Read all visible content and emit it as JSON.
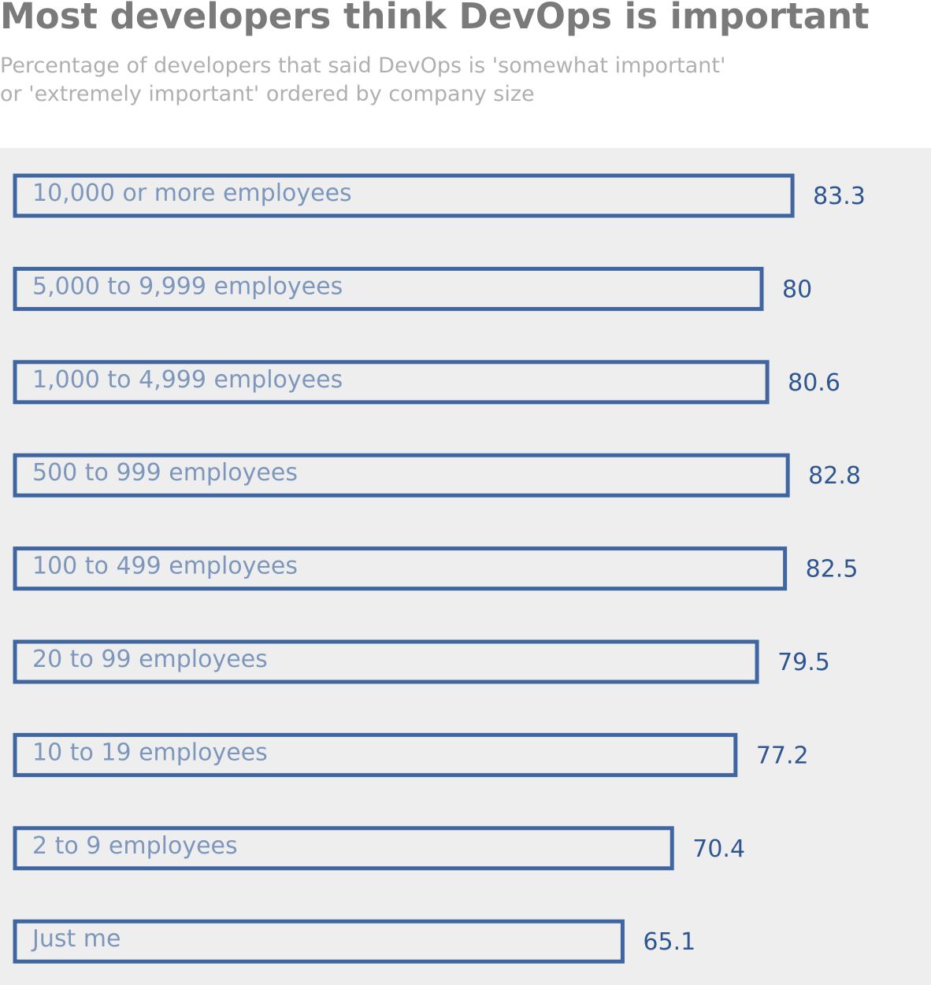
{
  "header": {
    "title": "Most developers think DevOps is important",
    "subtitle_lines": [
      "Percentage of developers that said DevOps is 'somewhat important'",
      "or 'extremely important' ordered by company size"
    ]
  },
  "colors": {
    "bar_stroke": "#3f66a1",
    "bar_label": "#7d97bc",
    "value_label": "#2f5691",
    "panel_background": "#eeeeee"
  },
  "chart_data": {
    "type": "bar",
    "orientation": "horizontal",
    "title": "Most developers think DevOps is important",
    "subtitle": "Percentage of developers that said DevOps is 'somewhat important' or 'extremely important' ordered by company size",
    "categories": [
      "10,000 or more employees",
      "5,000 to 9,999 employees",
      "1,000 to 4,999 employees",
      "500 to 999 employees",
      "100 to 499 employees",
      "20 to 99 employees",
      "10 to 19 employees",
      "2 to 9 employees",
      "Just me"
    ],
    "values": [
      83.3,
      80,
      80.6,
      82.8,
      82.5,
      79.5,
      77.2,
      70.4,
      65.1
    ],
    "value_labels": [
      "83.3",
      "80",
      "80.6",
      "82.8",
      "82.5",
      "79.5",
      "77.2",
      "70.4",
      "65.1"
    ],
    "xlabel": "",
    "ylabel": "",
    "xlim": [
      0,
      100
    ],
    "grid": false,
    "legend": "none"
  }
}
